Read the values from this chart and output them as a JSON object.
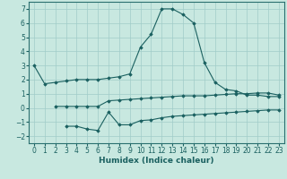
{
  "xlabel": "Humidex (Indice chaleur)",
  "bg_color": "#c8e8e0",
  "grid_color": "#a0ccc8",
  "line_color": "#1a6060",
  "spine_color": "#2a7070",
  "xlim": [
    -0.5,
    23.5
  ],
  "ylim": [
    -2.5,
    7.5
  ],
  "xticks": [
    0,
    1,
    2,
    3,
    4,
    5,
    6,
    7,
    8,
    9,
    10,
    11,
    12,
    13,
    14,
    15,
    16,
    17,
    18,
    19,
    20,
    21,
    22,
    23
  ],
  "yticks": [
    -2,
    -1,
    0,
    1,
    2,
    3,
    4,
    5,
    6,
    7
  ],
  "line1_x": [
    0,
    1,
    2,
    3,
    4,
    5,
    6,
    7,
    8,
    9,
    10,
    11,
    12,
    13,
    14,
    15,
    16,
    17,
    18,
    19,
    20,
    21,
    22,
    23
  ],
  "line1_y": [
    3.0,
    1.7,
    1.8,
    1.9,
    2.0,
    2.0,
    2.0,
    2.1,
    2.2,
    2.4,
    4.3,
    5.2,
    7.0,
    7.0,
    6.6,
    6.0,
    3.2,
    1.8,
    1.3,
    1.2,
    0.9,
    0.9,
    0.8,
    0.8
  ],
  "line2_x": [
    2,
    3,
    4,
    5,
    6,
    7,
    8,
    9,
    10,
    11,
    12,
    13,
    14,
    15,
    16,
    17,
    18,
    19,
    20,
    21,
    22,
    23
  ],
  "line2_y": [
    0.1,
    0.1,
    0.1,
    0.1,
    0.1,
    0.5,
    0.55,
    0.6,
    0.65,
    0.7,
    0.75,
    0.8,
    0.85,
    0.85,
    0.85,
    0.9,
    0.95,
    1.0,
    1.0,
    1.05,
    1.05,
    0.9
  ],
  "line3_x": [
    3,
    4,
    5,
    6,
    7,
    8,
    9,
    10,
    11,
    12,
    13,
    14,
    15,
    16,
    17,
    18,
    19,
    20,
    21,
    22,
    23
  ],
  "line3_y": [
    -1.3,
    -1.3,
    -1.5,
    -1.6,
    -0.3,
    -1.2,
    -1.2,
    -0.9,
    -0.85,
    -0.7,
    -0.6,
    -0.55,
    -0.5,
    -0.45,
    -0.4,
    -0.35,
    -0.3,
    -0.25,
    -0.2,
    -0.15,
    -0.15
  ]
}
